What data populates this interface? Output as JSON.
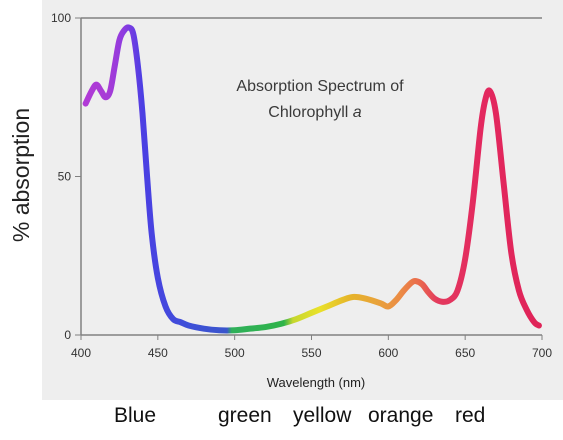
{
  "chart_data": {
    "type": "line",
    "title": "",
    "xlabel": "Wavelength (nm)",
    "ylabel": "% absorption",
    "xlim": [
      400,
      700
    ],
    "ylim": [
      0,
      100
    ],
    "x_ticks": [
      400,
      450,
      500,
      550,
      600,
      650,
      700
    ],
    "y_ticks": [
      0,
      50,
      100
    ],
    "grid": false,
    "annotation": {
      "line1": "Absorption Spectrum of",
      "line2_text": "Chlorophyll ",
      "line2_italic": "a"
    },
    "series": [
      {
        "x": [
          403,
          407,
          410,
          413,
          416,
          419,
          422,
          425,
          428,
          431,
          434,
          437,
          440,
          443,
          446,
          450,
          455,
          460,
          465,
          470,
          480,
          490,
          500,
          510,
          520,
          530,
          540,
          550,
          560,
          570,
          577,
          585,
          595,
          600,
          605,
          610,
          615,
          618,
          622,
          626,
          630,
          635,
          640,
          645,
          650,
          655,
          660,
          663,
          666,
          670,
          675,
          680,
          685,
          690,
          695,
          698
        ],
        "y": [
          73,
          77,
          79,
          77,
          75,
          77,
          85,
          93,
          96,
          97,
          95,
          85,
          70,
          50,
          32,
          18,
          9,
          5,
          4,
          3,
          2,
          1.5,
          1.5,
          2,
          2.5,
          3.5,
          5,
          7,
          9,
          11,
          12,
          11.5,
          10,
          9,
          11,
          14,
          16.5,
          17,
          16,
          13.5,
          11.5,
          10.5,
          11,
          14,
          24,
          42,
          65,
          74,
          77,
          70,
          48,
          26,
          14,
          8,
          4,
          3
        ]
      }
    ],
    "color_stops": [
      {
        "x": 403,
        "color": "#b13ad6"
      },
      {
        "x": 418,
        "color": "#a63bd6"
      },
      {
        "x": 428,
        "color": "#8d3be0"
      },
      {
        "x": 440,
        "color": "#4b3fe3"
      },
      {
        "x": 470,
        "color": "#3e50d8"
      },
      {
        "x": 495,
        "color": "#3a55cc"
      },
      {
        "x": 498,
        "color": "#2fb05a"
      },
      {
        "x": 532,
        "color": "#2fb34a"
      },
      {
        "x": 538,
        "color": "#c6d72e"
      },
      {
        "x": 555,
        "color": "#e9e12a"
      },
      {
        "x": 575,
        "color": "#e6b42a"
      },
      {
        "x": 592,
        "color": "#e8a33a"
      },
      {
        "x": 608,
        "color": "#eb8b45"
      },
      {
        "x": 620,
        "color": "#ea6a4c"
      },
      {
        "x": 632,
        "color": "#e33a5e"
      },
      {
        "x": 660,
        "color": "#e3285f"
      },
      {
        "x": 698,
        "color": "#df2458"
      }
    ]
  },
  "color_labels": [
    "Blue",
    "green",
    "yellow",
    "orange",
    "red"
  ],
  "colors": {
    "plot_bg": "#eeeeee",
    "axis": "#808080"
  }
}
